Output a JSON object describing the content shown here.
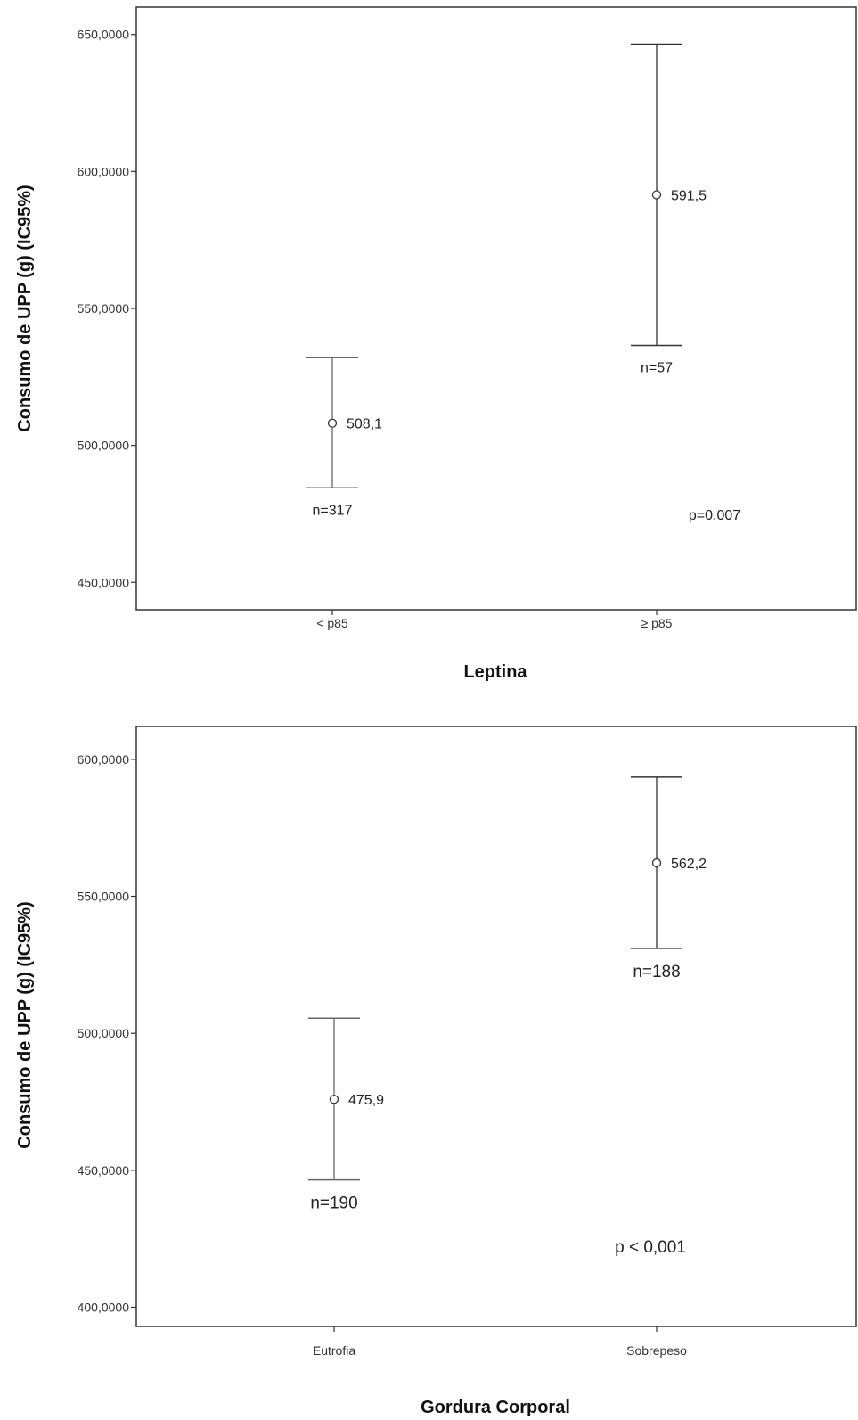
{
  "chart_data": [
    {
      "type": "errorbar",
      "xlabel": "Leptina",
      "ylabel": "Consumo de UPP (g) (IC95%)",
      "ylim": [
        440,
        660
      ],
      "yticks": [
        450,
        500,
        550,
        600,
        650
      ],
      "ytick_labels": [
        "450,0000",
        "500,0000",
        "550,0000",
        "600,0000",
        "650,0000"
      ],
      "categories": [
        "< p85",
        "≥ p85"
      ],
      "means": [
        508.1,
        591.5
      ],
      "lower": [
        484.5,
        536.5
      ],
      "upper": [
        532.0,
        646.5
      ],
      "mean_labels": [
        "508,1",
        "591,5"
      ],
      "n_labels": [
        "n=317",
        "n=57"
      ],
      "p_label": "p=0.007",
      "grid": false
    },
    {
      "type": "errorbar",
      "xlabel": "Gordura Corporal",
      "ylabel": "Consumo de UPP (g) (IC95%)",
      "ylim": [
        393,
        612
      ],
      "yticks": [
        400,
        450,
        500,
        550,
        600
      ],
      "ytick_labels": [
        "400,0000",
        "450,0000",
        "500,0000",
        "550,0000",
        "600,0000"
      ],
      "categories": [
        "Eutrofia",
        "Sobrepeso"
      ],
      "means": [
        475.9,
        562.2
      ],
      "lower": [
        446.5,
        531.0
      ],
      "upper": [
        505.5,
        593.5
      ],
      "mean_labels": [
        "475,9",
        "562,2"
      ],
      "n_labels": [
        "n=190",
        "n=188"
      ],
      "p_label": "p < 0,001",
      "grid": false
    }
  ]
}
